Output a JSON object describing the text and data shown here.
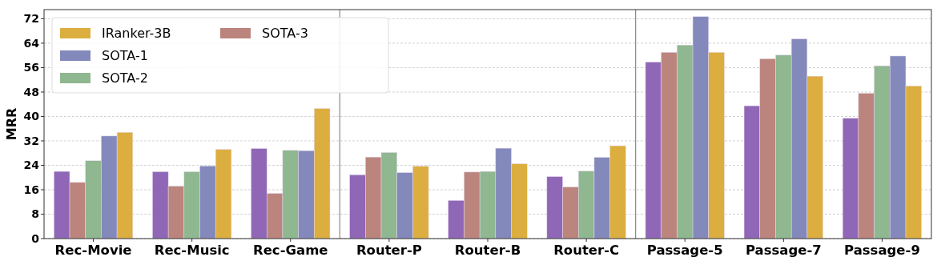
{
  "chart_data": {
    "type": "bar",
    "ylabel": "MRR",
    "categories": [
      "Rec-Movie",
      "Rec-Music",
      "Rec-Game",
      "Router-P",
      "Router-B",
      "Router-C",
      "Passage-5",
      "Passage-7",
      "Passage-9"
    ],
    "series": [
      {
        "color": "#9067b6",
        "values": [
          22.0,
          21.9,
          29.5,
          20.9,
          12.5,
          20.3,
          57.8,
          43.5,
          39.4
        ]
      },
      {
        "name": "SOTA-3",
        "color": "#bb857d",
        "values": [
          18.4,
          17.2,
          14.8,
          26.7,
          21.8,
          16.9,
          61.0,
          58.9,
          47.6
        ]
      },
      {
        "name": "SOTA-2",
        "color": "#8fb790",
        "values": [
          25.5,
          21.9,
          28.9,
          28.2,
          22.0,
          22.1,
          63.4,
          60.1,
          56.6
        ]
      },
      {
        "name": "SOTA-1",
        "color": "#8389bb",
        "values": [
          33.6,
          23.8,
          28.8,
          21.6,
          29.6,
          26.6,
          72.7,
          65.4,
          59.8
        ]
      },
      {
        "name": "IRanker-3B",
        "color": "#dcae3f",
        "values": [
          34.8,
          29.2,
          42.6,
          23.7,
          24.5,
          30.4,
          61.0,
          53.2,
          50.0
        ]
      }
    ],
    "ylim": [
      0,
      75
    ],
    "yticks": [
      0,
      8,
      16,
      24,
      32,
      40,
      48,
      56,
      64,
      72
    ],
    "grid": "y",
    "legend": "top left"
  }
}
